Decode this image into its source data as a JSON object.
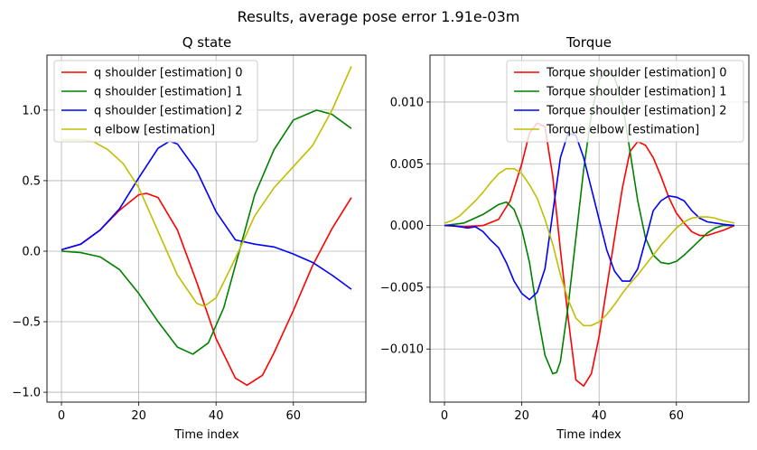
{
  "figure": {
    "suptitle": "Results, average pose error 1.91e-03m"
  },
  "chart_data": [
    {
      "type": "line",
      "title": "Q state",
      "xlabel": "Time index",
      "ylabel": "",
      "xlim": [
        -3.75,
        78.75
      ],
      "ylim": [
        -1.07,
        1.39
      ],
      "xticks": [
        0,
        20,
        40,
        60
      ],
      "yticks": [
        -1.0,
        -0.5,
        0.0,
        0.5,
        1.0
      ],
      "ytick_labels": [
        "−1.0",
        "−0.5",
        "0.0",
        "0.5",
        "1.0"
      ],
      "grid": true,
      "legend_position": "upper left",
      "series": [
        {
          "name": "q shoulder [estimation] 0",
          "color": "#ff0000",
          "x": [
            0,
            5,
            10,
            15,
            20,
            22,
            25,
            30,
            35,
            40,
            45,
            48,
            52,
            55,
            60,
            65,
            70,
            75
          ],
          "y": [
            0.01,
            0.05,
            0.15,
            0.29,
            0.4,
            0.41,
            0.38,
            0.15,
            -0.22,
            -0.62,
            -0.9,
            -0.95,
            -0.88,
            -0.72,
            -0.42,
            -0.1,
            0.16,
            0.38
          ]
        },
        {
          "name": "q shoulder [estimation] 1",
          "color": "#008000",
          "x": [
            0,
            5,
            10,
            15,
            20,
            25,
            30,
            34,
            38,
            42,
            46,
            50,
            55,
            60,
            66,
            70,
            75
          ],
          "y": [
            0.0,
            -0.01,
            -0.04,
            -0.13,
            -0.3,
            -0.5,
            -0.68,
            -0.73,
            -0.65,
            -0.4,
            0.0,
            0.4,
            0.72,
            0.93,
            1.0,
            0.97,
            0.87
          ]
        },
        {
          "name": "q shoulder [estimation] 2",
          "color": "#0000ff",
          "x": [
            0,
            5,
            10,
            15,
            20,
            25,
            28,
            30,
            35,
            40,
            45,
            50,
            55,
            60,
            65,
            70,
            75
          ],
          "y": [
            0.01,
            0.05,
            0.15,
            0.3,
            0.52,
            0.73,
            0.78,
            0.76,
            0.57,
            0.28,
            0.08,
            0.05,
            0.03,
            -0.02,
            -0.08,
            -0.17,
            -0.27
          ]
        },
        {
          "name": "q elbow [estimation]",
          "color": "#bfbf00",
          "x": [
            0,
            5,
            8,
            12,
            16,
            20,
            25,
            30,
            35,
            37,
            40,
            45,
            50,
            55,
            60,
            65,
            70,
            75
          ],
          "y": [
            0.79,
            0.79,
            0.78,
            0.72,
            0.62,
            0.45,
            0.14,
            -0.17,
            -0.37,
            -0.39,
            -0.33,
            -0.05,
            0.25,
            0.45,
            0.6,
            0.75,
            1.0,
            1.31
          ]
        }
      ]
    },
    {
      "type": "line",
      "title": "Torque",
      "xlabel": "Time index",
      "ylabel": "",
      "xlim": [
        -3.75,
        78.75
      ],
      "ylim": [
        -0.0143,
        0.0138
      ],
      "xticks": [
        0,
        20,
        40,
        60
      ],
      "yticks": [
        -0.01,
        -0.005,
        0.0,
        0.005,
        0.01
      ],
      "ytick_labels": [
        "−0.010",
        "−0.005",
        "0.000",
        "0.005",
        "0.010"
      ],
      "grid": true,
      "legend_position": "upper right",
      "series": [
        {
          "name": "Torque shoulder [estimation] 0",
          "color": "#ff0000",
          "x": [
            0,
            5,
            10,
            14,
            17,
            20,
            22,
            24,
            26,
            28,
            30,
            32,
            34,
            36,
            38,
            40,
            42,
            44,
            46,
            48,
            50,
            52,
            54,
            56,
            58,
            60,
            62,
            64,
            66,
            68,
            70,
            72,
            75
          ],
          "y": [
            0.0,
            -0.0001,
            0.0,
            0.0005,
            0.002,
            0.005,
            0.0075,
            0.0083,
            0.008,
            0.004,
            -0.002,
            -0.0075,
            -0.0125,
            -0.013,
            -0.012,
            -0.009,
            -0.005,
            -0.001,
            0.003,
            0.006,
            0.0068,
            0.0065,
            0.0055,
            0.004,
            0.0023,
            0.001,
            0.0002,
            -0.0005,
            -0.0008,
            -0.0008,
            -0.0006,
            -0.0004,
            0.0
          ]
        },
        {
          "name": "Torque shoulder [estimation] 1",
          "color": "#008000",
          "x": [
            0,
            5,
            10,
            14,
            16,
            18,
            20,
            22,
            24,
            26,
            28,
            29,
            30,
            32,
            34,
            36,
            38,
            40,
            42,
            44,
            46,
            48,
            50,
            52,
            54,
            56,
            58,
            60,
            62,
            64,
            66,
            68,
            70,
            72,
            75
          ],
          "y": [
            0.0,
            0.0002,
            0.0009,
            0.0017,
            0.0019,
            0.0013,
            -0.0003,
            -0.003,
            -0.007,
            -0.0105,
            -0.012,
            -0.0119,
            -0.011,
            -0.0065,
            -0.001,
            0.0045,
            0.009,
            0.0118,
            0.0125,
            0.012,
            0.01,
            0.006,
            0.002,
            -0.001,
            -0.0024,
            -0.003,
            -0.0031,
            -0.0029,
            -0.0024,
            -0.0018,
            -0.0012,
            -0.0006,
            -0.0002,
            0.0,
            0.0
          ]
        },
        {
          "name": "Torque shoulder [estimation] 2",
          "color": "#0000ff",
          "x": [
            0,
            2,
            4,
            6,
            8,
            10,
            12,
            14,
            16,
            18,
            20,
            22,
            24,
            26,
            28,
            30,
            32,
            34,
            36,
            38,
            40,
            42,
            44,
            46,
            48,
            50,
            52,
            54,
            56,
            58,
            60,
            62,
            64,
            66,
            68,
            70,
            72,
            75
          ],
          "y": [
            0.0,
            0.0,
            -0.0001,
            -0.0002,
            -0.0001,
            -0.0005,
            -0.0012,
            -0.0018,
            -0.003,
            -0.0045,
            -0.0055,
            -0.006,
            -0.0054,
            -0.0035,
            0.001,
            0.0055,
            0.0075,
            0.0073,
            0.0055,
            0.003,
            0.0005,
            -0.002,
            -0.0037,
            -0.0045,
            -0.0045,
            -0.0035,
            -0.0012,
            0.0012,
            0.002,
            0.0024,
            0.0023,
            0.002,
            0.0012,
            0.0006,
            0.0003,
            0.0002,
            0.0001,
            0.0
          ]
        },
        {
          "name": "Torque elbow [estimation]",
          "color": "#bfbf00",
          "x": [
            0,
            2,
            4,
            6,
            8,
            10,
            12,
            14,
            16,
            18,
            20,
            22,
            24,
            26,
            28,
            30,
            32,
            34,
            36,
            38,
            40,
            42,
            44,
            46,
            48,
            50,
            52,
            54,
            56,
            58,
            60,
            62,
            64,
            66,
            68,
            70,
            72,
            75
          ],
          "y": [
            0.0002,
            0.0004,
            0.0008,
            0.0014,
            0.002,
            0.0027,
            0.0035,
            0.0042,
            0.0046,
            0.0046,
            0.0042,
            0.0033,
            0.0022,
            0.0005,
            -0.0015,
            -0.004,
            -0.006,
            -0.0075,
            -0.0081,
            -0.0081,
            -0.0078,
            -0.0072,
            -0.0064,
            -0.0055,
            -0.0047,
            -0.004,
            -0.0032,
            -0.0024,
            -0.0016,
            -0.0009,
            -0.0002,
            0.0003,
            0.0006,
            0.0007,
            0.0007,
            0.0006,
            0.0004,
            0.0002
          ]
        }
      ]
    }
  ]
}
